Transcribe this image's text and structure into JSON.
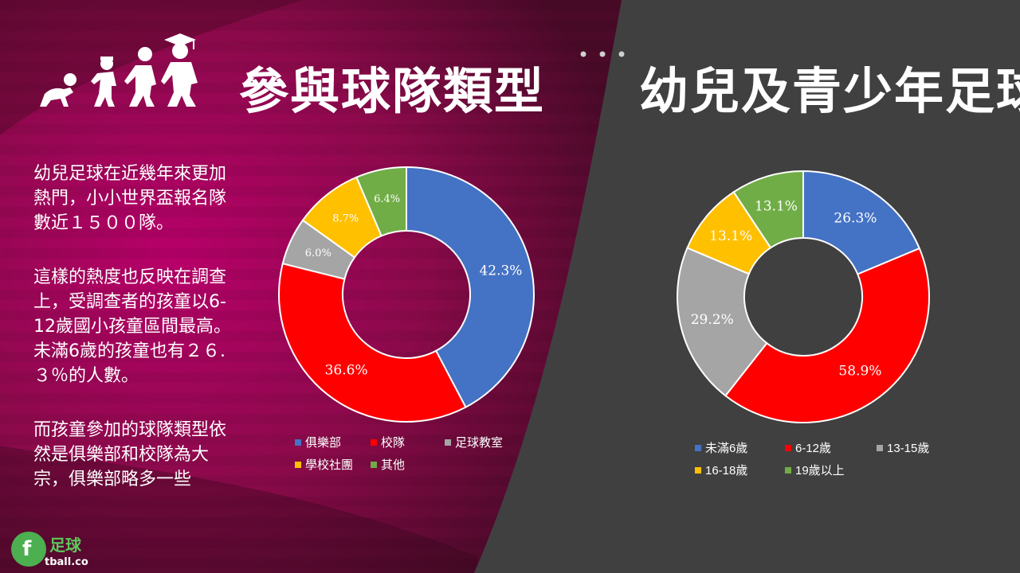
{
  "titles": {
    "left": "參與球隊類型",
    "right": "幼兒及青少年足球"
  },
  "paragraphs": [
    "幼兒足球在近幾年來更加熱門，小小世界盃報名隊數近１５００隊。",
    "這樣的熱度也反映在調查上，受調查者的孩童以6-12歲國小孩童區間最高。未滿6歲的孩童也有２６.３％的人數。",
    "而孩童參加的球隊類型依然是俱樂部和校隊為大宗，俱樂部略多一些"
  ],
  "colors": {
    "left_panel": "#9e0050",
    "right_panel": "#404040",
    "text": "#ffffff"
  },
  "icons": {
    "kids": "growing-children-icon",
    "logo": "football-logo-icon"
  },
  "logo": {
    "text": "足球",
    "subtext": "tball.co"
  },
  "chart_data": [
    {
      "type": "pie",
      "donut": true,
      "title": "",
      "categories": [
        "俱樂部",
        "校隊",
        "足球教室",
        "學校社團",
        "其他"
      ],
      "values": [
        42.3,
        36.6,
        6.0,
        8.7,
        6.4
      ],
      "labels": [
        "42.3%",
        "36.6%",
        "6.0%",
        "8.7%",
        "6.4%"
      ],
      "colors": [
        "#4472c4",
        "#ff0000",
        "#a5a5a5",
        "#ffc000",
        "#70ad47"
      ],
      "legend": "bottom"
    },
    {
      "type": "pie",
      "donut": true,
      "title": "",
      "categories": [
        "未滿6歲",
        "6-12歲",
        "13-15歲",
        "16-18歲",
        "19歲以上"
      ],
      "values": [
        26.3,
        58.9,
        29.2,
        13.1,
        13.1
      ],
      "labels": [
        "26.3%",
        "58.9%",
        "29.2%",
        "13.1%",
        "13.1%"
      ],
      "colors": [
        "#4472c4",
        "#ff0000",
        "#a5a5a5",
        "#ffc000",
        "#70ad47"
      ],
      "legend": "bottom"
    }
  ]
}
